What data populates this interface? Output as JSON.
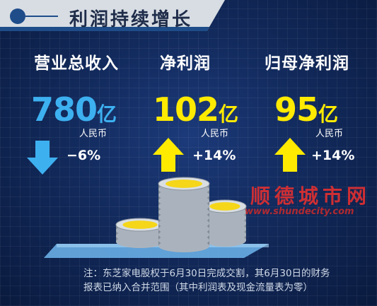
{
  "header": {
    "title": "利润持续增长",
    "logo_icon": "circle-line-icon"
  },
  "metrics": [
    {
      "label": "营业总收入",
      "value": "780",
      "unit": "亿",
      "currency": "人民币",
      "change": "−6%",
      "direction": "down",
      "value_color": "#3db0f0",
      "arrow_color": "#3db0f0"
    },
    {
      "label": "净利润",
      "value": "102",
      "unit": "亿",
      "currency": "人民币",
      "change": "+14%",
      "direction": "up",
      "value_color": "#ffea00",
      "arrow_color": "#ffea00"
    },
    {
      "label": "归母净利润",
      "value": "95",
      "unit": "亿",
      "currency": "人民币",
      "change": "+14%",
      "direction": "up",
      "value_color": "#ffea00",
      "arrow_color": "#ffea00"
    }
  ],
  "illustration": {
    "icon": "coin-stacks-icon"
  },
  "note": {
    "line1": "注：东芝家电股权于6月30日完成交割，其6月30日的财务",
    "line2": "报表已纳入合并范围（其中利润表及现金流量表为零）"
  },
  "watermark": {
    "text": "顺德城市网",
    "url": "www.shundecity.com"
  }
}
